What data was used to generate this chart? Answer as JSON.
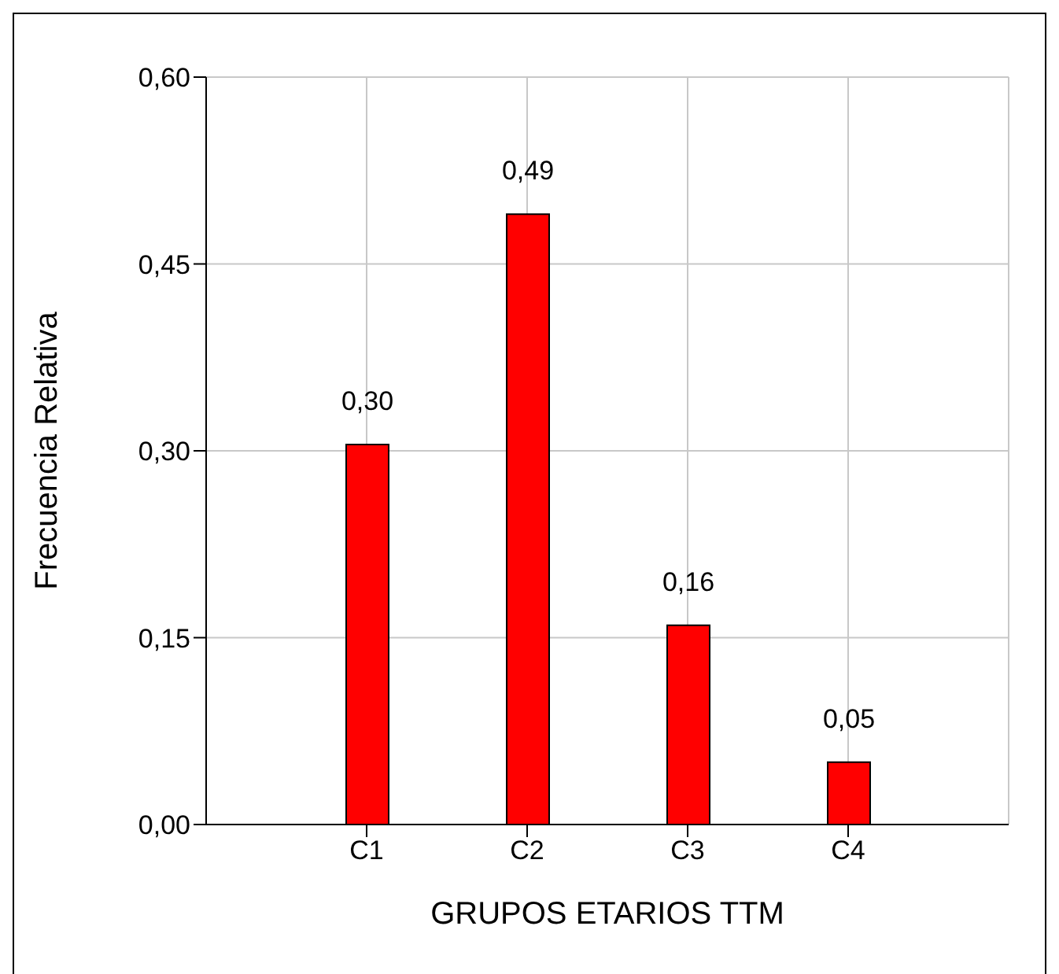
{
  "chart_data": {
    "type": "bar",
    "xlabel": "GRUPOS ETARIOS TTM",
    "ylabel": "Frecuencia Relativa",
    "categories": [
      "C1",
      "C2",
      "C3",
      "C4"
    ],
    "values": [
      0.305,
      0.49,
      0.16,
      0.05
    ],
    "value_labels": [
      "0,30",
      "0,49",
      "0,16",
      "0,05"
    ],
    "color": "#ff0000",
    "ylim": [
      0,
      0.6
    ],
    "yticks": [
      {
        "value": 0,
        "label": "0,00"
      },
      {
        "value": 0.15,
        "label": "0,15"
      },
      {
        "value": 0.3,
        "label": "0,30"
      },
      {
        "value": 0.45,
        "label": "0,45"
      },
      {
        "value": 0.6,
        "label": "0,60"
      }
    ],
    "grid": true
  }
}
